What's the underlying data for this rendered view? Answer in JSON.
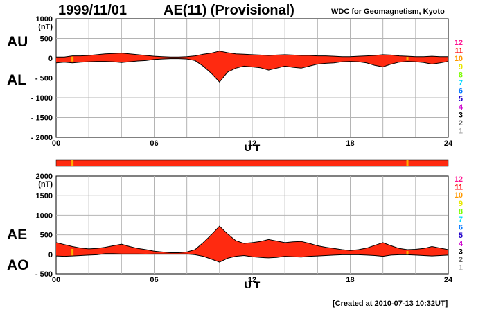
{
  "header": {
    "date": "1999/11/01",
    "title": "AE(11) (Provisional)",
    "source": "WDC for Geomagnetism, Kyoto"
  },
  "footer": {
    "created": "[Created at 2010-07-13 10:32UT]"
  },
  "colors": {
    "fill": "#ff2a10",
    "outline": "#000000",
    "grid": "#b4b4b4",
    "flag": "#ffb000"
  },
  "legend": {
    "items": [
      {
        "label": "12",
        "color": "#ff1493"
      },
      {
        "label": "11",
        "color": "#ff0000"
      },
      {
        "label": "10",
        "color": "#ff9900"
      },
      {
        "label": "9",
        "color": "#e8e800"
      },
      {
        "label": "8",
        "color": "#7cfc00"
      },
      {
        "label": "7",
        "color": "#00d8ff"
      },
      {
        "label": "6",
        "color": "#0077ff"
      },
      {
        "label": "5",
        "color": "#2200cc"
      },
      {
        "label": "4",
        "color": "#cc00cc"
      },
      {
        "label": "3",
        "color": "#000000"
      },
      {
        "label": "2",
        "color": "#666666"
      },
      {
        "label": "1",
        "color": "#aaaaaa"
      }
    ]
  },
  "chart_data": [
    {
      "type": "area",
      "panel": "AU/AL",
      "series_labels": [
        "AU",
        "AL"
      ],
      "unit": "(nT)",
      "xlabel": "U T",
      "xlim": [
        0,
        24
      ],
      "ylim": [
        -2000,
        1000
      ],
      "xticks": [
        "00",
        "06",
        "12",
        "18",
        "24"
      ],
      "yticks": [
        "1000",
        "500",
        "0",
        "- 500",
        "- 1000",
        "- 1500",
        "- 2000"
      ],
      "x": [
        0,
        0.5,
        1,
        1.5,
        2,
        2.5,
        3,
        3.5,
        4,
        4.5,
        5,
        5.5,
        6,
        6.5,
        7,
        7.5,
        8,
        8.5,
        9,
        9.5,
        10,
        10.5,
        11,
        11.5,
        12,
        12.5,
        13,
        13.5,
        14,
        14.5,
        15,
        15.5,
        16,
        16.5,
        17,
        17.5,
        18,
        18.5,
        19,
        19.5,
        20,
        20.5,
        21,
        21.5,
        22,
        22.5,
        23,
        23.5,
        24
      ],
      "upper": [
        30,
        30,
        60,
        60,
        70,
        90,
        110,
        120,
        130,
        110,
        90,
        70,
        50,
        40,
        30,
        30,
        40,
        60,
        100,
        130,
        180,
        140,
        110,
        100,
        90,
        80,
        70,
        80,
        90,
        80,
        70,
        70,
        60,
        60,
        50,
        40,
        40,
        50,
        60,
        70,
        90,
        80,
        60,
        50,
        40,
        40,
        50,
        40,
        40
      ],
      "lower": [
        -120,
        -100,
        -120,
        -100,
        -90,
        -80,
        -80,
        -90,
        -110,
        -90,
        -70,
        -60,
        -30,
        -20,
        -10,
        -10,
        -20,
        -60,
        -200,
        -380,
        -600,
        -350,
        -250,
        -200,
        -220,
        -240,
        -300,
        -250,
        -200,
        -230,
        -250,
        -200,
        -150,
        -130,
        -120,
        -90,
        -80,
        -90,
        -120,
        -180,
        -220,
        -150,
        -100,
        -80,
        -90,
        -110,
        -150,
        -120,
        -80
      ]
    },
    {
      "type": "area",
      "panel": "AE/AO",
      "series_labels": [
        "AE",
        "AO"
      ],
      "unit": "(nT)",
      "xlabel": "U T",
      "xlim": [
        0,
        24
      ],
      "ylim": [
        -500,
        2000
      ],
      "xticks": [
        "00",
        "06",
        "12",
        "18",
        "24"
      ],
      "yticks": [
        "2000",
        "1500",
        "1000",
        "500",
        "0",
        "- 500"
      ],
      "x": [
        0,
        0.5,
        1,
        1.5,
        2,
        2.5,
        3,
        3.5,
        4,
        4.5,
        5,
        5.5,
        6,
        6.5,
        7,
        7.5,
        8,
        8.5,
        9,
        9.5,
        10,
        10.5,
        11,
        11.5,
        12,
        12.5,
        13,
        13.5,
        14,
        14.5,
        15,
        15.5,
        16,
        16.5,
        17,
        17.5,
        18,
        18.5,
        19,
        19.5,
        20,
        20.5,
        21,
        21.5,
        22,
        22.5,
        23,
        23.5,
        24
      ],
      "upper": [
        300,
        250,
        200,
        160,
        140,
        150,
        180,
        220,
        260,
        200,
        150,
        120,
        80,
        60,
        40,
        40,
        60,
        120,
        300,
        500,
        720,
        520,
        350,
        280,
        300,
        330,
        380,
        340,
        300,
        320,
        330,
        280,
        220,
        180,
        150,
        120,
        100,
        120,
        160,
        230,
        300,
        220,
        150,
        120,
        130,
        150,
        200,
        160,
        120
      ],
      "lower": [
        -40,
        -50,
        -40,
        -30,
        -20,
        -10,
        20,
        20,
        10,
        10,
        10,
        5,
        10,
        10,
        10,
        10,
        10,
        -10,
        -50,
        -120,
        -200,
        -100,
        -50,
        -30,
        -60,
        -80,
        -90,
        -80,
        -50,
        -60,
        -70,
        -50,
        -40,
        -30,
        -20,
        -10,
        -10,
        -10,
        -20,
        -30,
        -50,
        -20,
        -10,
        -10,
        -20,
        -30,
        -40,
        -30,
        -20
      ]
    }
  ]
}
